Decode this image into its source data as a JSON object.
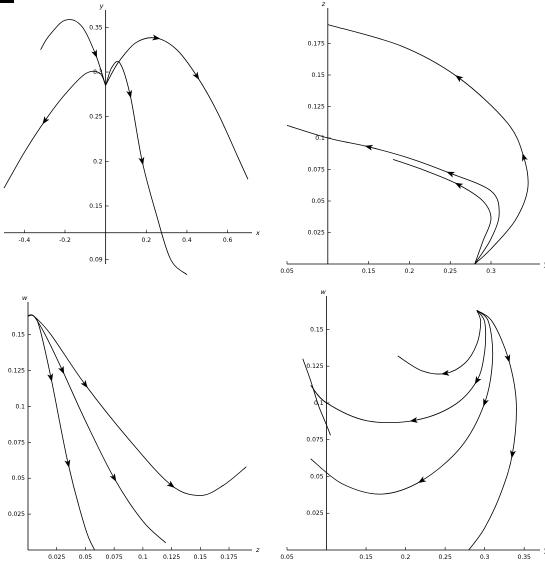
{
  "chart_data": [
    {
      "type": "line",
      "xlabel": "x",
      "ylabel": "y",
      "xlim": [
        -0.5,
        0.72
      ],
      "ylim": [
        0.085,
        0.365
      ],
      "x_axis_at": 0.12,
      "y_axis_at": 0,
      "xticks": [
        {
          "v": -0.4,
          "label": "-0.4"
        },
        {
          "v": -0.2,
          "label": "-0.2"
        },
        {
          "v": 0.2,
          "label": "0.2"
        },
        {
          "v": 0.4,
          "label": "0.4"
        },
        {
          "v": 0.6,
          "label": "0.6"
        }
      ],
      "yticks": [
        {
          "v": 0.09,
          "label": "0.09"
        },
        {
          "v": 0.15,
          "label": "0.15"
        },
        {
          "v": 0.2,
          "label": "0.2"
        },
        {
          "v": 0.25,
          "label": "0.25"
        },
        {
          "v": 0.3,
          "label": "0.3"
        },
        {
          "v": 0.35,
          "label": "0.35"
        }
      ],
      "series": [
        {
          "x": [
            -0.5,
            -0.4,
            -0.3,
            -0.2,
            -0.1,
            -0.03,
            0
          ],
          "y": [
            0.17,
            0.21,
            0.245,
            0.275,
            0.298,
            0.299,
            0.285
          ],
          "arrows": [
            {
              "at": 2,
              "dir": "backward"
            }
          ]
        },
        {
          "x": [
            0,
            0.06,
            0.15,
            0.25,
            0.35,
            0.45,
            0.55,
            0.65,
            0.7
          ],
          "y": [
            0.285,
            0.31,
            0.333,
            0.338,
            0.325,
            0.295,
            0.255,
            0.205,
            0.18
          ],
          "arrows": [
            {
              "at": 3,
              "dir": "forward"
            },
            {
              "at": 5,
              "dir": "forward"
            }
          ]
        },
        {
          "x": [
            0,
            -0.05,
            -0.12,
            -0.2,
            -0.28,
            -0.32
          ],
          "y": [
            0.285,
            0.32,
            0.352,
            0.358,
            0.34,
            0.325
          ],
          "arrows": [
            {
              "at": 1,
              "dir": "backward"
            }
          ]
        },
        {
          "x": [
            0,
            0.03,
            0.07,
            0.12,
            0.18,
            0.25,
            0.32,
            0.4
          ],
          "y": [
            0.285,
            0.305,
            0.31,
            0.275,
            0.2,
            0.14,
            0.09,
            0.073
          ],
          "arrows": [
            {
              "at": 3,
              "dir": "forward"
            },
            {
              "at": 4,
              "dir": "forward"
            }
          ]
        }
      ]
    },
    {
      "type": "line",
      "xlabel": "y",
      "ylabel": "z",
      "xlim": [
        0.05,
        0.36
      ],
      "ylim": [
        0,
        0.2
      ],
      "x_axis_at": 0,
      "y_axis_at": 0.1,
      "xticks": [
        {
          "v": 0.05,
          "label": "0.05"
        },
        {
          "v": 0.15,
          "label": "0.15"
        },
        {
          "v": 0.2,
          "label": "0.2"
        },
        {
          "v": 0.25,
          "label": "0.25"
        },
        {
          "v": 0.3,
          "label": "0.3"
        }
      ],
      "yticks": [
        {
          "v": 0.025,
          "label": "0.025"
        },
        {
          "v": 0.05,
          "label": "0.05"
        },
        {
          "v": 0.075,
          "label": "0.075"
        },
        {
          "v": 0.1,
          "label": "0.1"
        },
        {
          "v": 0.125,
          "label": "0.125"
        },
        {
          "v": 0.15,
          "label": "0.15"
        },
        {
          "v": 0.175,
          "label": "0.175"
        }
      ],
      "series": [
        {
          "x": [
            0.28,
            0.3,
            0.33,
            0.345,
            0.34,
            0.32,
            0.26,
            0.19,
            0.1
          ],
          "y": [
            0,
            0.012,
            0.035,
            0.06,
            0.085,
            0.112,
            0.148,
            0.173,
            0.19
          ],
          "arrows": [
            {
              "at": 4,
              "dir": "forward"
            },
            {
              "at": 6,
              "dir": "forward"
            }
          ]
        },
        {
          "x": [
            0.28,
            0.3,
            0.31,
            0.3,
            0.25,
            0.2,
            0.15,
            0.1,
            0.05
          ],
          "y": [
            0,
            0.02,
            0.04,
            0.058,
            0.072,
            0.084,
            0.093,
            0.1,
            0.11
          ],
          "arrows": [
            {
              "at": 4,
              "dir": "forward"
            },
            {
              "at": 6,
              "dir": "forward"
            }
          ]
        },
        {
          "x": [
            0.28,
            0.29,
            0.3,
            0.29,
            0.26,
            0.22,
            0.18
          ],
          "y": [
            0,
            0.018,
            0.036,
            0.05,
            0.063,
            0.074,
            0.083
          ],
          "arrows": [
            {
              "at": 4,
              "dir": "forward"
            }
          ]
        }
      ]
    },
    {
      "type": "line",
      "xlabel": "z",
      "ylabel": "w",
      "xlim": [
        0,
        0.195
      ],
      "ylim": [
        0,
        0.17
      ],
      "x_axis_at": 0,
      "y_axis_at": 0,
      "xticks": [
        {
          "v": 0.025,
          "label": "0.025"
        },
        {
          "v": 0.05,
          "label": "0.05"
        },
        {
          "v": 0.075,
          "label": "0.075"
        },
        {
          "v": 0.1,
          "label": "0.1"
        },
        {
          "v": 0.125,
          "label": "0.125"
        },
        {
          "v": 0.15,
          "label": "0.15"
        },
        {
          "v": 0.175,
          "label": "0.175"
        }
      ],
      "yticks": [
        {
          "v": 0.025,
          "label": "0.025"
        },
        {
          "v": 0.05,
          "label": "0.05"
        },
        {
          "v": 0.075,
          "label": "0.075"
        },
        {
          "v": 0.1,
          "label": "0.1"
        },
        {
          "v": 0.125,
          "label": "0.125"
        },
        {
          "v": 0.15,
          "label": "0.15"
        }
      ],
      "series": [
        {
          "x": [
            0,
            0.005,
            0.01,
            0.02,
            0.035,
            0.05,
            0.058
          ],
          "y": [
            0.163,
            0.163,
            0.155,
            0.12,
            0.06,
            0.015,
            0
          ],
          "arrows": [
            {
              "at": 3,
              "dir": "forward"
            },
            {
              "at": 4,
              "dir": "forward"
            }
          ]
        },
        {
          "x": [
            0,
            0.005,
            0.015,
            0.03,
            0.05,
            0.075,
            0.1,
            0.12
          ],
          "y": [
            0.163,
            0.163,
            0.15,
            0.125,
            0.09,
            0.05,
            0.02,
            0.005
          ],
          "arrows": [
            {
              "at": 3,
              "dir": "forward"
            },
            {
              "at": 5,
              "dir": "forward"
            }
          ]
        },
        {
          "x": [
            0,
            0.005,
            0.02,
            0.05,
            0.09,
            0.125,
            0.15,
            0.17,
            0.19
          ],
          "y": [
            0.163,
            0.163,
            0.15,
            0.115,
            0.075,
            0.045,
            0.038,
            0.045,
            0.058
          ],
          "arrows": [
            {
              "at": 3,
              "dir": "forward"
            },
            {
              "at": 5,
              "dir": "forward"
            }
          ]
        }
      ]
    },
    {
      "type": "line",
      "xlabel": "y",
      "ylabel": "w",
      "xlim": [
        0.05,
        0.37
      ],
      "ylim": [
        0,
        0.17
      ],
      "x_axis_at": 0,
      "y_axis_at": 0.1,
      "xticks": [
        {
          "v": 0.05,
          "label": "0.05"
        },
        {
          "v": 0.15,
          "label": "0.15"
        },
        {
          "v": 0.2,
          "label": "0.2"
        },
        {
          "v": 0.25,
          "label": "0.25"
        },
        {
          "v": 0.3,
          "label": "0.3"
        },
        {
          "v": 0.35,
          "label": "0.35"
        }
      ],
      "yticks": [
        {
          "v": 0.025,
          "label": "0.025"
        },
        {
          "v": 0.05,
          "label": "0.05"
        },
        {
          "v": 0.075,
          "label": "0.075"
        },
        {
          "v": 0.1,
          "label": "0.1"
        },
        {
          "v": 0.125,
          "label": "0.125"
        },
        {
          "v": 0.15,
          "label": "0.15"
        }
      ],
      "series": [
        {
          "x": [
            0.29,
            0.295,
            0.29,
            0.275,
            0.25,
            0.22,
            0.19
          ],
          "y": [
            0.163,
            0.155,
            0.14,
            0.127,
            0.12,
            0.122,
            0.132
          ],
          "arrows": [
            {
              "at": 4,
              "dir": "forward"
            }
          ]
        },
        {
          "x": [
            0.29,
            0.3,
            0.3,
            0.29,
            0.26,
            0.21,
            0.15,
            0.1,
            0.08
          ],
          "y": [
            0.163,
            0.155,
            0.135,
            0.115,
            0.098,
            0.088,
            0.088,
            0.1,
            0.112
          ],
          "arrows": [
            {
              "at": 3,
              "dir": "forward"
            },
            {
              "at": 5,
              "dir": "forward"
            }
          ]
        },
        {
          "x": [
            0.29,
            0.305,
            0.31,
            0.3,
            0.27,
            0.22,
            0.17,
            0.12,
            0.08
          ],
          "y": [
            0.163,
            0.155,
            0.13,
            0.1,
            0.07,
            0.047,
            0.038,
            0.045,
            0.062
          ],
          "arrows": [
            {
              "at": 3,
              "dir": "forward"
            },
            {
              "at": 5,
              "dir": "forward"
            }
          ]
        },
        {
          "x": [
            0.29,
            0.31,
            0.33,
            0.34,
            0.335,
            0.32,
            0.3,
            0.28
          ],
          "y": [
            0.163,
            0.155,
            0.13,
            0.1,
            0.065,
            0.038,
            0.015,
            0
          ],
          "arrows": [
            {
              "at": 2,
              "dir": "forward"
            },
            {
              "at": 4,
              "dir": "forward"
            }
          ]
        },
        {
          "x": [
            0.07,
            0.08,
            0.09,
            0.1,
            0.105
          ],
          "y": [
            0.13,
            0.115,
            0.098,
            0.085,
            0.078
          ],
          "arrows": []
        }
      ]
    }
  ]
}
